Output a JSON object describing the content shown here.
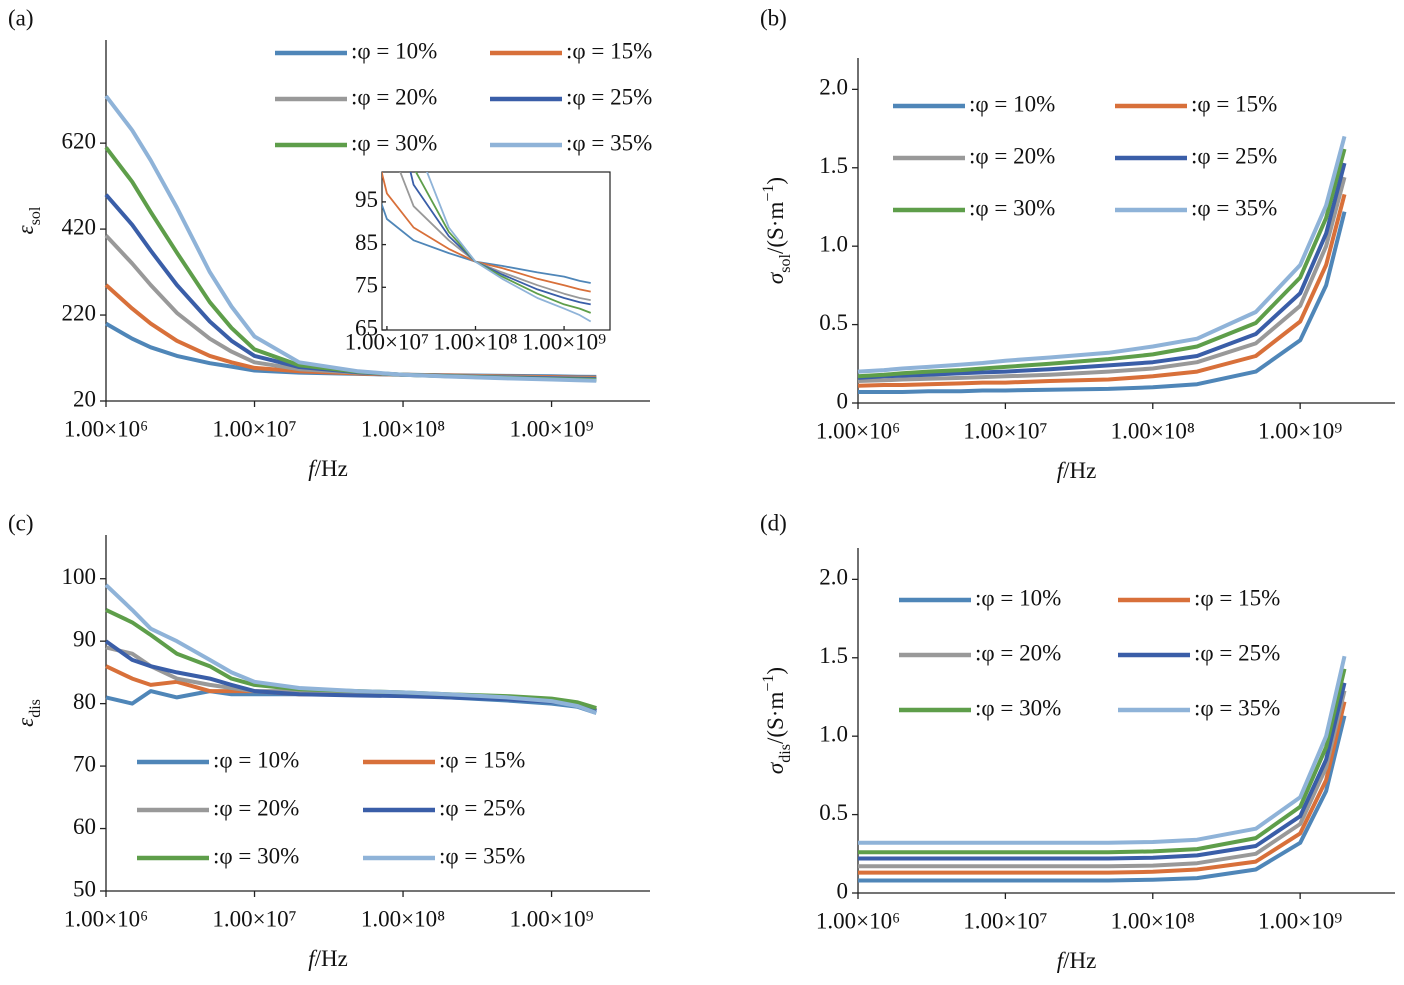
{
  "chart_data": [
    {
      "type": "line",
      "panel_label": "(a)",
      "xscale": "log",
      "ylabel": [
        {
          "text": "ε",
          "italic": true
        },
        {
          "text": "sol",
          "sub": true
        }
      ],
      "xlabel": [
        {
          "text": "f",
          "italic": true
        },
        {
          "text": "/Hz"
        }
      ],
      "xlim": [
        1000000,
        4600000000
      ],
      "ylim": [
        20,
        860
      ],
      "xticks": [
        {
          "value": 1000000,
          "label": "1.00×10⁶"
        },
        {
          "value": 10000000,
          "label": "1.00×10⁷"
        },
        {
          "value": 100000000,
          "label": "1.00×10⁸"
        },
        {
          "value": 1000000000,
          "label": "1.00×10⁹"
        }
      ],
      "yticks": [
        20,
        220,
        420,
        620
      ],
      "x": [
        1000000,
        1500000,
        2000000,
        3000000,
        5000000,
        7000000,
        10000000,
        20000000,
        50000000,
        100000000,
        200000000,
        500000000,
        1000000000,
        1500000000,
        2000000000
      ],
      "series": [
        {
          "name": ":φ = 10%",
          "color": "#4f86b8",
          "values": [
            200,
            165,
            145,
            125,
            108,
            100,
            91,
            86,
            83,
            81,
            80,
            78.5,
            77.5,
            76.5,
            76
          ]
        },
        {
          "name": ":φ = 15%",
          "color": "#d8703a",
          "values": [
            290,
            235,
            200,
            160,
            125,
            110,
            97,
            89,
            84,
            81,
            79.5,
            77,
            75.5,
            74.5,
            74
          ]
        },
        {
          "name": ":φ = 20%",
          "color": "#999999",
          "values": [
            405,
            340,
            290,
            225,
            165,
            135,
            110,
            94,
            86,
            81,
            78.5,
            75.5,
            73.5,
            72.5,
            72
          ]
        },
        {
          "name": ":φ = 25%",
          "color": "#3a5ea8",
          "values": [
            500,
            430,
            370,
            290,
            205,
            160,
            125,
            99,
            87,
            81,
            78,
            74.5,
            72.5,
            71.5,
            71
          ]
        },
        {
          "name": ":φ = 30%",
          "color": "#5e9e4a",
          "values": [
            610,
            530,
            460,
            365,
            250,
            190,
            140,
            103,
            88,
            81,
            77.5,
            73.5,
            71,
            70,
            69
          ]
        },
        {
          "name": ":φ = 35%",
          "color": "#8fb3d8",
          "values": [
            730,
            650,
            580,
            470,
            320,
            240,
            170,
            110,
            89,
            81,
            77,
            72.5,
            70,
            68.5,
            67
          ]
        }
      ],
      "inset": {
        "xlim": [
          8800000,
          3300000000
        ],
        "ylim": [
          65,
          102
        ],
        "xticks": [
          {
            "value": 10000000,
            "label": "1.00×10⁷"
          },
          {
            "value": 100000000,
            "label": "1.00×10⁸"
          },
          {
            "value": 1000000000,
            "label": "1.00×10⁹"
          }
        ],
        "yticks": [
          65,
          75,
          85,
          95
        ]
      }
    },
    {
      "type": "line",
      "panel_label": "(b)",
      "xscale": "log",
      "ylabel": [
        {
          "text": "σ",
          "italic": true
        },
        {
          "text": "sol",
          "sub": true
        },
        {
          "text": "/(S·m"
        },
        {
          "text": "−1",
          "sup": true
        },
        {
          "text": ")"
        }
      ],
      "xlabel": [
        {
          "text": "f",
          "italic": true
        },
        {
          "text": "/Hz"
        }
      ],
      "xlim": [
        1000000,
        4400000000
      ],
      "ylim": [
        0,
        2.2
      ],
      "xticks": [
        {
          "value": 1000000,
          "label": "1.00×10⁶"
        },
        {
          "value": 10000000,
          "label": "1.00×10⁷"
        },
        {
          "value": 100000000,
          "label": "1.00×10⁸"
        },
        {
          "value": 1000000000,
          "label": "1.00×10⁹"
        }
      ],
      "yticks": [
        0,
        0.5,
        {
          "value": 1,
          "label": "1.0"
        },
        1.5,
        {
          "value": 2,
          "label": "2.0"
        }
      ],
      "x": [
        1000000,
        1500000,
        2000000,
        3000000,
        5000000,
        7000000,
        10000000,
        20000000,
        50000000,
        100000000,
        200000000,
        500000000,
        1000000000,
        1500000000,
        2000000000
      ],
      "series": [
        {
          "name": ":φ = 10%",
          "color": "#4f86b8",
          "values": [
            0.07,
            0.07,
            0.07,
            0.075,
            0.075,
            0.08,
            0.08,
            0.085,
            0.09,
            0.1,
            0.12,
            0.2,
            0.4,
            0.75,
            1.22
          ]
        },
        {
          "name": ":φ = 15%",
          "color": "#d8703a",
          "values": [
            0.11,
            0.115,
            0.115,
            0.12,
            0.125,
            0.13,
            0.13,
            0.14,
            0.15,
            0.17,
            0.2,
            0.3,
            0.52,
            0.88,
            1.33
          ]
        },
        {
          "name": ":φ = 20%",
          "color": "#999999",
          "values": [
            0.14,
            0.145,
            0.15,
            0.155,
            0.16,
            0.165,
            0.17,
            0.18,
            0.2,
            0.22,
            0.26,
            0.38,
            0.62,
            1.0,
            1.44
          ]
        },
        {
          "name": ":φ = 25%",
          "color": "#3a5ea8",
          "values": [
            0.16,
            0.17,
            0.175,
            0.18,
            0.19,
            0.195,
            0.2,
            0.215,
            0.24,
            0.26,
            0.3,
            0.44,
            0.7,
            1.08,
            1.53
          ]
        },
        {
          "name": ":φ = 30%",
          "color": "#5e9e4a",
          "values": [
            0.17,
            0.18,
            0.19,
            0.2,
            0.21,
            0.22,
            0.23,
            0.25,
            0.28,
            0.31,
            0.36,
            0.51,
            0.8,
            1.18,
            1.62
          ]
        },
        {
          "name": ":φ = 35%",
          "color": "#8fb3d8",
          "values": [
            0.2,
            0.21,
            0.22,
            0.23,
            0.245,
            0.255,
            0.27,
            0.29,
            0.32,
            0.36,
            0.41,
            0.58,
            0.88,
            1.26,
            1.7
          ]
        }
      ]
    },
    {
      "type": "line",
      "panel_label": "(c)",
      "xscale": "log",
      "ylabel": [
        {
          "text": "ε",
          "italic": true
        },
        {
          "text": "dis",
          "sub": true
        }
      ],
      "xlabel": [
        {
          "text": "f",
          "italic": true
        },
        {
          "text": "/Hz"
        }
      ],
      "xlim": [
        1000000,
        4600000000
      ],
      "ylim": [
        50,
        107
      ],
      "xticks": [
        {
          "value": 1000000,
          "label": "1.00×10⁶"
        },
        {
          "value": 10000000,
          "label": "1.00×10⁷"
        },
        {
          "value": 100000000,
          "label": "1.00×10⁸"
        },
        {
          "value": 1000000000,
          "label": "1.00×10⁹"
        }
      ],
      "yticks": [
        50,
        60,
        70,
        80,
        90,
        100
      ],
      "x": [
        1000000,
        1500000,
        2000000,
        3000000,
        5000000,
        7000000,
        10000000,
        20000000,
        50000000,
        100000000,
        200000000,
        500000000,
        1000000000,
        1500000000,
        2000000000
      ],
      "series": [
        {
          "name": ":φ = 10%",
          "color": "#4f86b8",
          "values": [
            81,
            80,
            82,
            81,
            82,
            81.5,
            81.5,
            81.5,
            81.5,
            81.5,
            81,
            80.5,
            80,
            79.5,
            78.5
          ]
        },
        {
          "name": ":φ = 15%",
          "color": "#d8703a",
          "values": [
            86,
            84,
            83,
            83.5,
            82,
            82,
            82,
            81.5,
            81.5,
            81.5,
            81.2,
            81,
            80.5,
            80,
            79
          ]
        },
        {
          "name": ":φ = 20%",
          "color": "#999999",
          "values": [
            89,
            88,
            86,
            84,
            83,
            82.5,
            82,
            82,
            81.8,
            81.5,
            81.3,
            81,
            80.5,
            80,
            79
          ]
        },
        {
          "name": ":φ = 25%",
          "color": "#3a5ea8",
          "values": [
            90,
            87,
            86,
            85,
            84,
            83,
            82,
            81.5,
            81.3,
            81.2,
            81,
            80.7,
            80.3,
            79.8,
            78.8
          ]
        },
        {
          "name": ":φ = 30%",
          "color": "#5e9e4a",
          "values": [
            95,
            93,
            91,
            88,
            86,
            84,
            83,
            82.3,
            82,
            81.8,
            81.5,
            81.2,
            80.8,
            80.2,
            79.3
          ]
        },
        {
          "name": ":φ = 35%",
          "color": "#8fb3d8",
          "values": [
            99,
            95,
            92,
            90,
            87,
            85,
            83.5,
            82.5,
            82,
            81.8,
            81.5,
            81,
            80.4,
            79.6,
            78.5
          ]
        }
      ]
    },
    {
      "type": "line",
      "panel_label": "(d)",
      "xscale": "log",
      "ylabel": [
        {
          "text": "σ",
          "italic": true
        },
        {
          "text": "dis",
          "sub": true
        },
        {
          "text": "/(S·m"
        },
        {
          "text": "−1",
          "sup": true
        },
        {
          "text": ")"
        }
      ],
      "xlabel": [
        {
          "text": "f",
          "italic": true
        },
        {
          "text": "/Hz"
        }
      ],
      "xlim": [
        1000000,
        4400000000
      ],
      "ylim": [
        0,
        2.2
      ],
      "xticks": [
        {
          "value": 1000000,
          "label": "1.00×10⁶"
        },
        {
          "value": 10000000,
          "label": "1.00×10⁷"
        },
        {
          "value": 100000000,
          "label": "1.00×10⁸"
        },
        {
          "value": 1000000000,
          "label": "1.00×10⁹"
        }
      ],
      "yticks": [
        0,
        0.5,
        {
          "value": 1,
          "label": "1.0"
        },
        1.5,
        {
          "value": 2,
          "label": "2.0"
        }
      ],
      "x": [
        1000000,
        1500000,
        2000000,
        3000000,
        5000000,
        7000000,
        10000000,
        20000000,
        50000000,
        100000000,
        200000000,
        500000000,
        1000000000,
        1500000000,
        2000000000
      ],
      "series": [
        {
          "name": ":φ = 10%",
          "color": "#4f86b8",
          "values": [
            0.08,
            0.08,
            0.08,
            0.08,
            0.08,
            0.08,
            0.08,
            0.08,
            0.08,
            0.085,
            0.095,
            0.15,
            0.32,
            0.65,
            1.13
          ]
        },
        {
          "name": ":φ = 15%",
          "color": "#d8703a",
          "values": [
            0.13,
            0.13,
            0.13,
            0.13,
            0.13,
            0.13,
            0.13,
            0.13,
            0.13,
            0.135,
            0.15,
            0.2,
            0.38,
            0.72,
            1.22
          ]
        },
        {
          "name": ":φ = 20%",
          "color": "#999999",
          "values": [
            0.17,
            0.17,
            0.17,
            0.17,
            0.17,
            0.17,
            0.17,
            0.17,
            0.17,
            0.175,
            0.19,
            0.25,
            0.44,
            0.8,
            1.29
          ]
        },
        {
          "name": ":φ = 25%",
          "color": "#3a5ea8",
          "values": [
            0.22,
            0.22,
            0.22,
            0.22,
            0.22,
            0.22,
            0.22,
            0.22,
            0.22,
            0.225,
            0.24,
            0.3,
            0.49,
            0.85,
            1.34
          ]
        },
        {
          "name": ":φ = 30%",
          "color": "#5e9e4a",
          "values": [
            0.26,
            0.26,
            0.26,
            0.26,
            0.26,
            0.26,
            0.26,
            0.26,
            0.26,
            0.265,
            0.28,
            0.35,
            0.55,
            0.93,
            1.43
          ]
        },
        {
          "name": ":φ = 35%",
          "color": "#8fb3d8",
          "values": [
            0.32,
            0.32,
            0.32,
            0.32,
            0.32,
            0.32,
            0.32,
            0.32,
            0.32,
            0.325,
            0.34,
            0.41,
            0.61,
            1.0,
            1.51
          ]
        }
      ]
    }
  ]
}
